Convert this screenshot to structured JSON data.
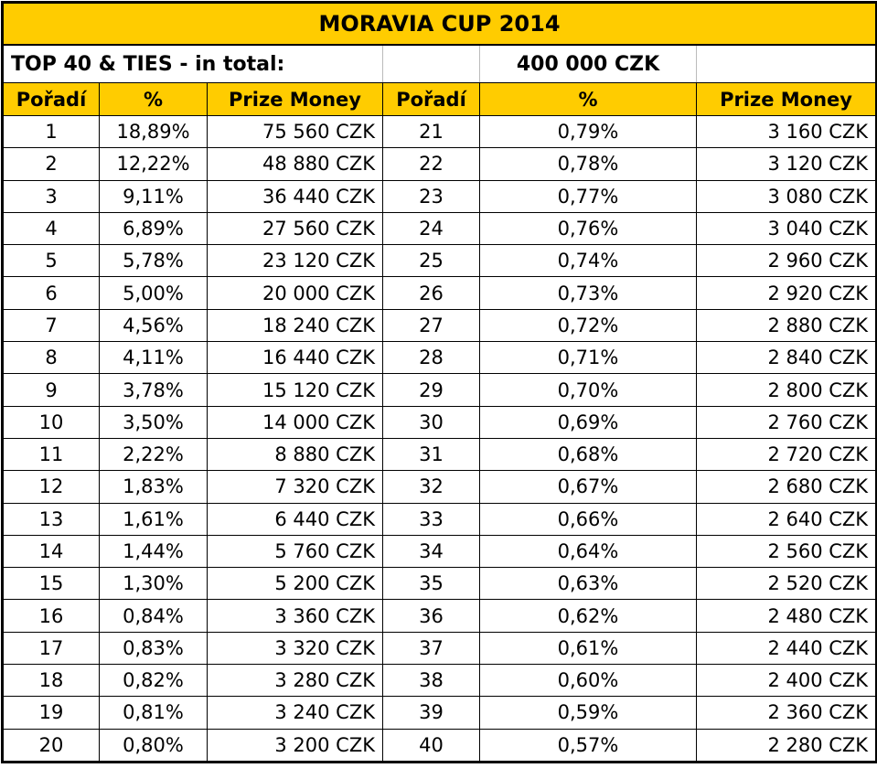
{
  "title": "MORAVIA CUP 2014",
  "subtitle": "TOP 40 & TIES - in total:",
  "total": "400 000 CZK",
  "headers": [
    "Pořadí",
    "%",
    "Prize Money",
    "Pořadí",
    "%",
    "Prize Money"
  ],
  "colors": {
    "header_bg": "#FFCC00"
  },
  "rows": [
    {
      "place": "1",
      "pct": "18,89%",
      "prize": "75 560 CZK"
    },
    {
      "place": "2",
      "pct": "12,22%",
      "prize": "48 880 CZK"
    },
    {
      "place": "3",
      "pct": "9,11%",
      "prize": "36 440 CZK"
    },
    {
      "place": "4",
      "pct": "6,89%",
      "prize": "27 560 CZK"
    },
    {
      "place": "5",
      "pct": "5,78%",
      "prize": "23 120 CZK"
    },
    {
      "place": "6",
      "pct": "5,00%",
      "prize": "20 000 CZK"
    },
    {
      "place": "7",
      "pct": "4,56%",
      "prize": "18 240 CZK"
    },
    {
      "place": "8",
      "pct": "4,11%",
      "prize": "16 440 CZK"
    },
    {
      "place": "9",
      "pct": "3,78%",
      "prize": "15 120 CZK"
    },
    {
      "place": "10",
      "pct": "3,50%",
      "prize": "14 000 CZK"
    },
    {
      "place": "11",
      "pct": "2,22%",
      "prize": "8 880 CZK"
    },
    {
      "place": "12",
      "pct": "1,83%",
      "prize": "7 320 CZK"
    },
    {
      "place": "13",
      "pct": "1,61%",
      "prize": "6 440 CZK"
    },
    {
      "place": "14",
      "pct": "1,44%",
      "prize": "5 760 CZK"
    },
    {
      "place": "15",
      "pct": "1,30%",
      "prize": "5 200 CZK"
    },
    {
      "place": "16",
      "pct": "0,84%",
      "prize": "3 360 CZK"
    },
    {
      "place": "17",
      "pct": "0,83%",
      "prize": "3 320 CZK"
    },
    {
      "place": "18",
      "pct": "0,82%",
      "prize": "3 280 CZK"
    },
    {
      "place": "19",
      "pct": "0,81%",
      "prize": "3 240 CZK"
    },
    {
      "place": "20",
      "pct": "0,80%",
      "prize": "3 200 CZK"
    },
    {
      "place": "21",
      "pct": "0,79%",
      "prize": "3 160 CZK"
    },
    {
      "place": "22",
      "pct": "0,78%",
      "prize": "3 120 CZK"
    },
    {
      "place": "23",
      "pct": "0,77%",
      "prize": "3 080 CZK"
    },
    {
      "place": "24",
      "pct": "0,76%",
      "prize": "3 040 CZK"
    },
    {
      "place": "25",
      "pct": "0,74%",
      "prize": "2 960 CZK"
    },
    {
      "place": "26",
      "pct": "0,73%",
      "prize": "2 920 CZK"
    },
    {
      "place": "27",
      "pct": "0,72%",
      "prize": "2 880 CZK"
    },
    {
      "place": "28",
      "pct": "0,71%",
      "prize": "2 840 CZK"
    },
    {
      "place": "29",
      "pct": "0,70%",
      "prize": "2 800 CZK"
    },
    {
      "place": "30",
      "pct": "0,69%",
      "prize": "2 760 CZK"
    },
    {
      "place": "31",
      "pct": "0,68%",
      "prize": "2 720 CZK"
    },
    {
      "place": "32",
      "pct": "0,67%",
      "prize": "2 680 CZK"
    },
    {
      "place": "33",
      "pct": "0,66%",
      "prize": "2 640 CZK"
    },
    {
      "place": "34",
      "pct": "0,64%",
      "prize": "2 560 CZK"
    },
    {
      "place": "35",
      "pct": "0,63%",
      "prize": "2 520 CZK"
    },
    {
      "place": "36",
      "pct": "0,62%",
      "prize": "2 480 CZK"
    },
    {
      "place": "37",
      "pct": "0,61%",
      "prize": "2 440 CZK"
    },
    {
      "place": "38",
      "pct": "0,60%",
      "prize": "2 400 CZK"
    },
    {
      "place": "39",
      "pct": "0,59%",
      "prize": "2 360 CZK"
    },
    {
      "place": "40",
      "pct": "0,57%",
      "prize": "2 280 CZK"
    }
  ]
}
